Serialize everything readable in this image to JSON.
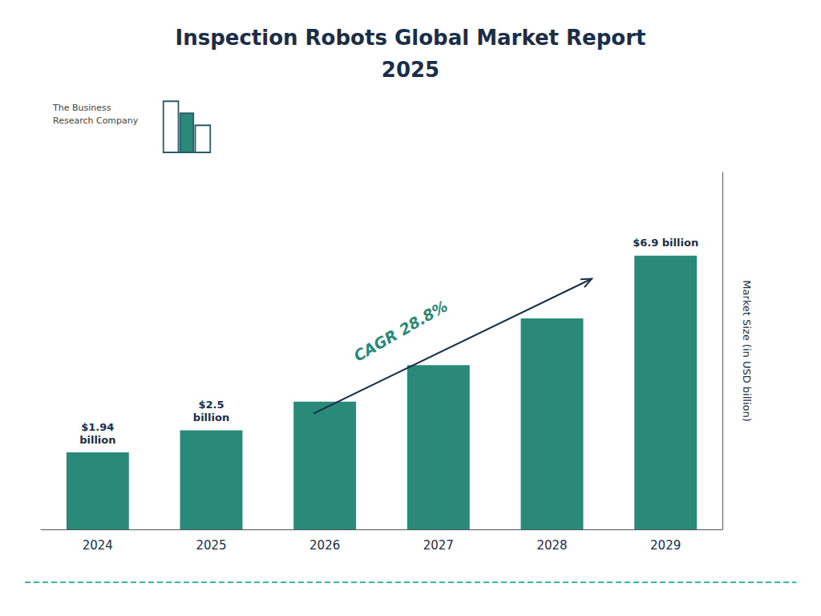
{
  "chart_data": {
    "type": "bar",
    "title": "Inspection Robots Global Market Report\n2025",
    "categories": [
      "2024",
      "2025",
      "2026",
      "2027",
      "2028",
      "2029"
    ],
    "values": [
      1.94,
      2.5,
      3.22,
      4.14,
      5.32,
      6.9
    ],
    "value_labels": [
      "$1.94\nbillion",
      "$2.5\nbillion",
      null,
      null,
      null,
      "$6.9 billion"
    ],
    "data_labels": true,
    "color": "#2a8a7a",
    "ylabel": "Market Size (in USD billion)",
    "ylim": [
      0,
      9.0
    ],
    "yticks": [],
    "tick_labels": "x",
    "grid": false,
    "annotations": [
      "CAGR 28.8%",
      "The Business\nResearch Company"
    ]
  }
}
